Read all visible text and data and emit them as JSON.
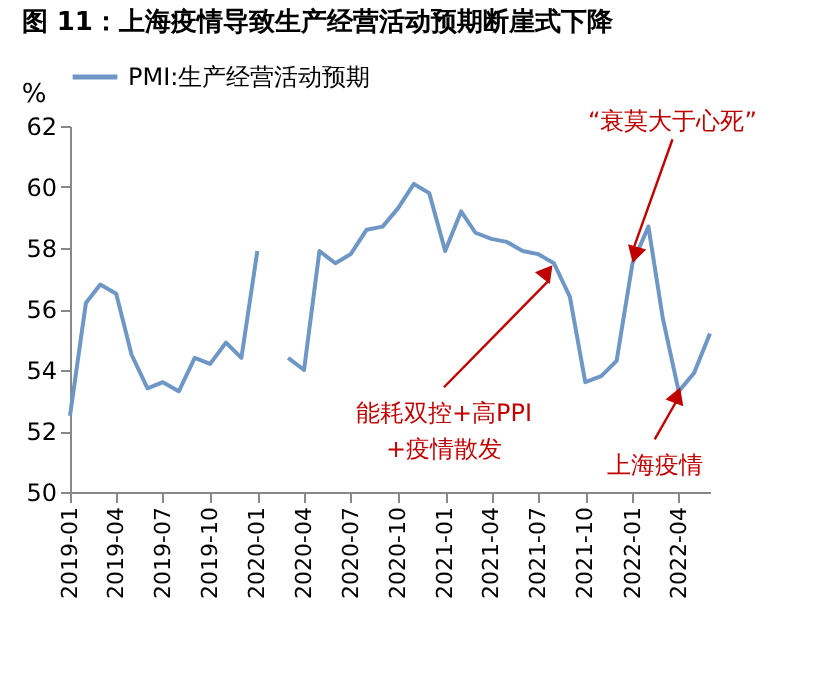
{
  "chart_data": {
    "type": "line",
    "title": "图 11：上海疫情导致生产经营活动预期断崖式下降",
    "ylabel": "%",
    "x": [
      "2019-01",
      "2019-02",
      "2019-03",
      "2019-04",
      "2019-05",
      "2019-06",
      "2019-07",
      "2019-08",
      "2019-09",
      "2019-10",
      "2019-11",
      "2019-12",
      "2020-01",
      "2020-02",
      "2020-03",
      "2020-04",
      "2020-05",
      "2020-06",
      "2020-07",
      "2020-08",
      "2020-09",
      "2020-10",
      "2020-11",
      "2020-12",
      "2021-01",
      "2021-02",
      "2021-03",
      "2021-04",
      "2021-05",
      "2021-06",
      "2021-07",
      "2021-08",
      "2021-09",
      "2021-10",
      "2021-11",
      "2021-12",
      "2022-01",
      "2022-02",
      "2022-03",
      "2022-04",
      "2022-05",
      "2022-06"
    ],
    "series": [
      {
        "name": "PMI:生产经营活动预期",
        "color": "#6f97c6",
        "values": [
          52.5,
          56.2,
          56.8,
          56.5,
          54.5,
          53.4,
          53.6,
          53.3,
          54.4,
          54.2,
          54.9,
          54.4,
          57.9,
          null,
          54.4,
          54.0,
          57.9,
          57.5,
          57.8,
          58.6,
          58.7,
          59.3,
          60.1,
          59.8,
          57.9,
          59.2,
          58.5,
          58.3,
          58.2,
          57.9,
          57.8,
          57.5,
          56.4,
          53.6,
          53.8,
          54.3,
          57.5,
          58.7,
          55.7,
          53.3,
          53.9,
          55.2
        ]
      }
    ],
    "xlim": [
      "2019-01",
      "2022-06"
    ],
    "xticks": [
      "2019-01",
      "2019-04",
      "2019-07",
      "2019-10",
      "2020-01",
      "2020-04",
      "2020-07",
      "2020-10",
      "2021-01",
      "2021-04",
      "2021-07",
      "2021-10",
      "2022-01",
      "2022-04"
    ],
    "ylim": [
      50,
      62
    ],
    "yticks": [
      50,
      52,
      54,
      56,
      58,
      60,
      62
    ],
    "grid": false,
    "legend": "top",
    "line_style": "solid",
    "marker": "none",
    "annotations": [
      {
        "text": "能耗双控+高PPI\n+疫情散发",
        "x": "2021-08",
        "y": 57.5
      },
      {
        "text": "“衰莫大于心死”",
        "x": "2022-01",
        "y": 57.5
      },
      {
        "text": "上海疫情",
        "x": "2022-04",
        "y": 53.3
      }
    ]
  }
}
